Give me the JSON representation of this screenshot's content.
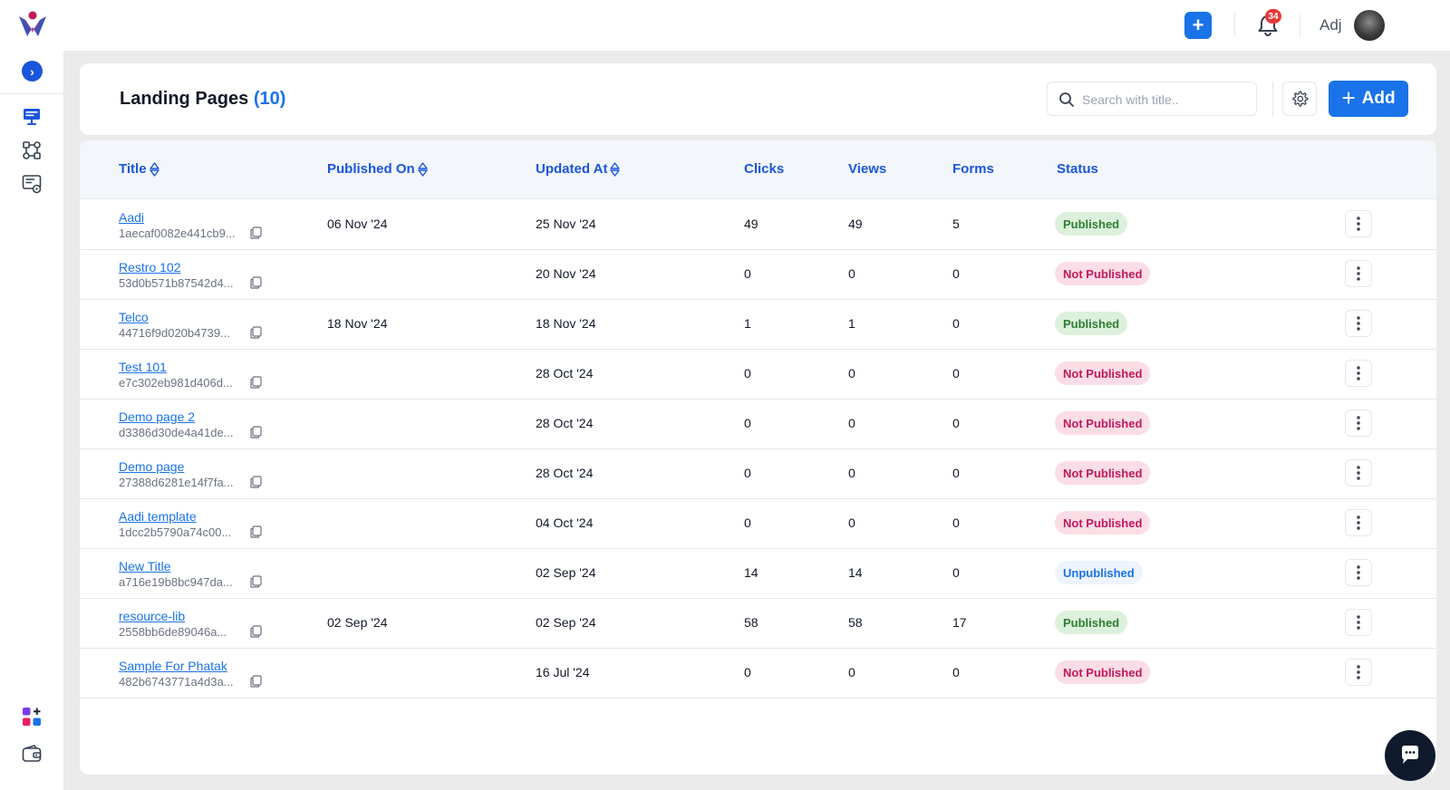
{
  "topbar": {
    "user_name": "Adj",
    "notification_count": "34",
    "quick_add_symbol": "+"
  },
  "sidebar": {
    "toggle_symbol": "›",
    "items": [
      {
        "icon": "monitor-icon"
      },
      {
        "icon": "workflow-icon"
      },
      {
        "icon": "forms-settings-icon"
      }
    ],
    "bottom_items": [
      {
        "icon": "apps-add-icon"
      },
      {
        "icon": "wallet-icon"
      }
    ]
  },
  "header": {
    "title": "Landing Pages",
    "count": "(10)",
    "search_placeholder": "Search with title..",
    "add_label": "Add",
    "add_symbol": "+"
  },
  "table": {
    "columns": {
      "title": "Title",
      "published_on": "Published On",
      "updated_at": "Updated At",
      "clicks": "Clicks",
      "views": "Views",
      "forms": "Forms",
      "status": "Status"
    },
    "rows": [
      {
        "title": "Aadi",
        "id": "1aecaf0082e441cb9...",
        "published_on": "06 Nov '24",
        "updated_at": "25 Nov '24",
        "clicks": "49",
        "views": "49",
        "forms": "5",
        "status": "Published",
        "status_type": "published"
      },
      {
        "title": "Restro 102",
        "id": "53d0b571b87542d4...",
        "published_on": "",
        "updated_at": "20 Nov '24",
        "clicks": "0",
        "views": "0",
        "forms": "0",
        "status": "Not Published",
        "status_type": "not-published"
      },
      {
        "title": "Telco",
        "id": "44716f9d020b4739...",
        "published_on": "18 Nov '24",
        "updated_at": "18 Nov '24",
        "clicks": "1",
        "views": "1",
        "forms": "0",
        "status": "Published",
        "status_type": "published"
      },
      {
        "title": "Test 101",
        "id": "e7c302eb981d406d...",
        "published_on": "",
        "updated_at": "28 Oct '24",
        "clicks": "0",
        "views": "0",
        "forms": "0",
        "status": "Not Published",
        "status_type": "not-published"
      },
      {
        "title": "Demo page 2",
        "id": "d3386d30de4a41de...",
        "published_on": "",
        "updated_at": "28 Oct '24",
        "clicks": "0",
        "views": "0",
        "forms": "0",
        "status": "Not Published",
        "status_type": "not-published"
      },
      {
        "title": "Demo page",
        "id": "27388d6281e14f7fa...",
        "published_on": "",
        "updated_at": "28 Oct '24",
        "clicks": "0",
        "views": "0",
        "forms": "0",
        "status": "Not Published",
        "status_type": "not-published"
      },
      {
        "title": "Aadi template",
        "id": "1dcc2b5790a74c00...",
        "published_on": "",
        "updated_at": "04 Oct '24",
        "clicks": "0",
        "views": "0",
        "forms": "0",
        "status": "Not Published",
        "status_type": "not-published"
      },
      {
        "title": "New Title",
        "id": "a716e19b8bc947da...",
        "published_on": "",
        "updated_at": "02 Sep '24",
        "clicks": "14",
        "views": "14",
        "forms": "0",
        "status": "Unpublished",
        "status_type": "unpublished"
      },
      {
        "title": "resource-lib",
        "id": "2558bb6de89046a...",
        "published_on": "02 Sep '24",
        "updated_at": "02 Sep '24",
        "clicks": "58",
        "views": "58",
        "forms": "17",
        "status": "Published",
        "status_type": "published"
      },
      {
        "title": "Sample For Phatak",
        "id": "482b6743771a4d3a...",
        "published_on": "",
        "updated_at": "16 Jul '24",
        "clicks": "0",
        "views": "0",
        "forms": "0",
        "status": "Not Published",
        "status_type": "not-published"
      }
    ]
  },
  "colors": {
    "accent": "#1a73e8",
    "published_bg": "#dcf1dc",
    "published_text": "#2e7d32",
    "not_published_bg": "#fbdde5",
    "not_published_text": "#c2185b",
    "unpublished_text": "#1a73e8"
  }
}
